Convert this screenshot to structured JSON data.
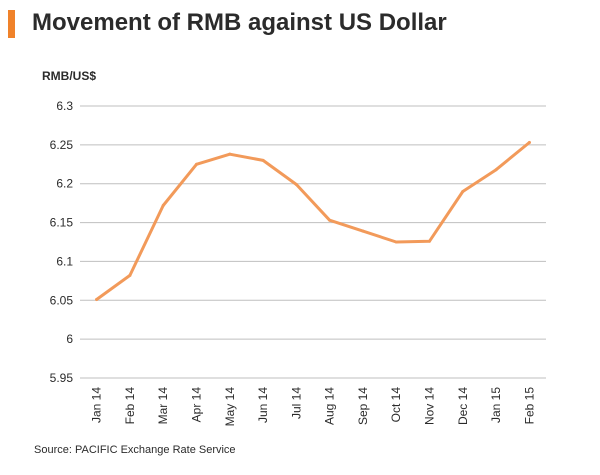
{
  "title": "Movement of RMB against US Dollar",
  "source": "Source: PACIFIC Exchange Rate Service",
  "colors": {
    "accent": "#f0822a",
    "line": "#f29a5a",
    "grid": "#bfbfbf"
  },
  "chart_data": {
    "type": "line",
    "ylabel": "RMB/US$",
    "xlabel": "",
    "categories": [
      "Jan 14",
      "Feb 14",
      "Mar 14",
      "Apr 14",
      "May 14",
      "Jun 14",
      "Jul 14",
      "Aug 14",
      "Sep 14",
      "Oct 14",
      "Nov 14",
      "Dec 14",
      "Jan 15",
      "Feb 15"
    ],
    "values": [
      6.051,
      6.082,
      6.172,
      6.225,
      6.238,
      6.23,
      6.199,
      6.153,
      6.139,
      6.125,
      6.126,
      6.19,
      6.218,
      6.253
    ],
    "ylim": [
      5.95,
      6.3
    ],
    "yticks": [
      "6.3",
      "6.25",
      "6.2",
      "6.15",
      "6.1",
      "6.05",
      "6",
      "5.95"
    ],
    "grid": true,
    "legend": "none"
  }
}
